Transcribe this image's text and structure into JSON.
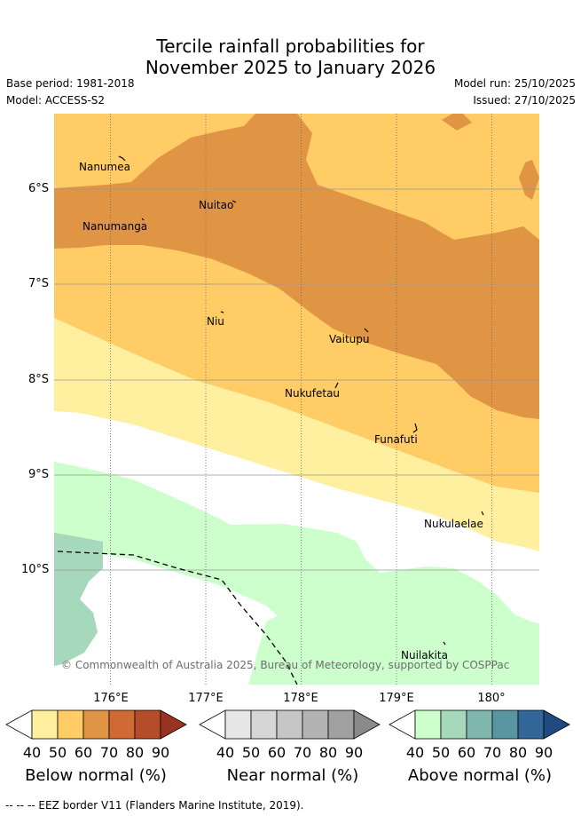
{
  "title_line1": "Tercile rainfall probabilities for",
  "title_line2": "November 2025 to January 2026",
  "base_period": "Base period: 1981-2018",
  "model": "Model: ACCESS-S2",
  "model_run": "Model run: 25/10/2025",
  "issued": "Issued: 27/10/2025",
  "lat_labels": [
    "6°S",
    "7°S",
    "8°S",
    "9°S",
    "10°S"
  ],
  "lon_labels": [
    "176°E",
    "177°E",
    "178°E",
    "179°E",
    "180°"
  ],
  "places": [
    "Nanumea",
    "Nuitao",
    "Nanumanga",
    "Niu",
    "Vaitupu",
    "Nukufetau",
    "Funafuti",
    "Nukulaelae",
    "Nuilakita"
  ],
  "copyright": "© Commonwealth of Australia 2025, Bureau of Meteorology, supported by COSPPac",
  "colorbars": [
    {
      "label": "Below normal (%)",
      "ticks": [
        "40",
        "50",
        "60",
        "70",
        "80",
        "90"
      ],
      "colors": [
        "#ffffff",
        "#fff0a0",
        "#ffcc66",
        "#e09545",
        "#cf6a35",
        "#b54d2a",
        "#9b3322"
      ]
    },
    {
      "label": "Near normal (%)",
      "ticks": [
        "40",
        "50",
        "60",
        "70",
        "80",
        "90"
      ],
      "colors": [
        "#ffffff",
        "#e6e6e6",
        "#d6d6d6",
        "#c6c6c6",
        "#b3b3b3",
        "#a0a0a0",
        "#8a8a8a"
      ]
    },
    {
      "label": "Above normal (%)",
      "ticks": [
        "40",
        "50",
        "60",
        "70",
        "80",
        "90"
      ],
      "colors": [
        "#ffffff",
        "#ccffcc",
        "#a6d8bc",
        "#80b8b0",
        "#5a95a2",
        "#336699",
        "#1f4a82"
      ]
    }
  ],
  "eez_note": "-- -- -- EEZ border V11 (Flanders Marine Institute, 2019)."
}
